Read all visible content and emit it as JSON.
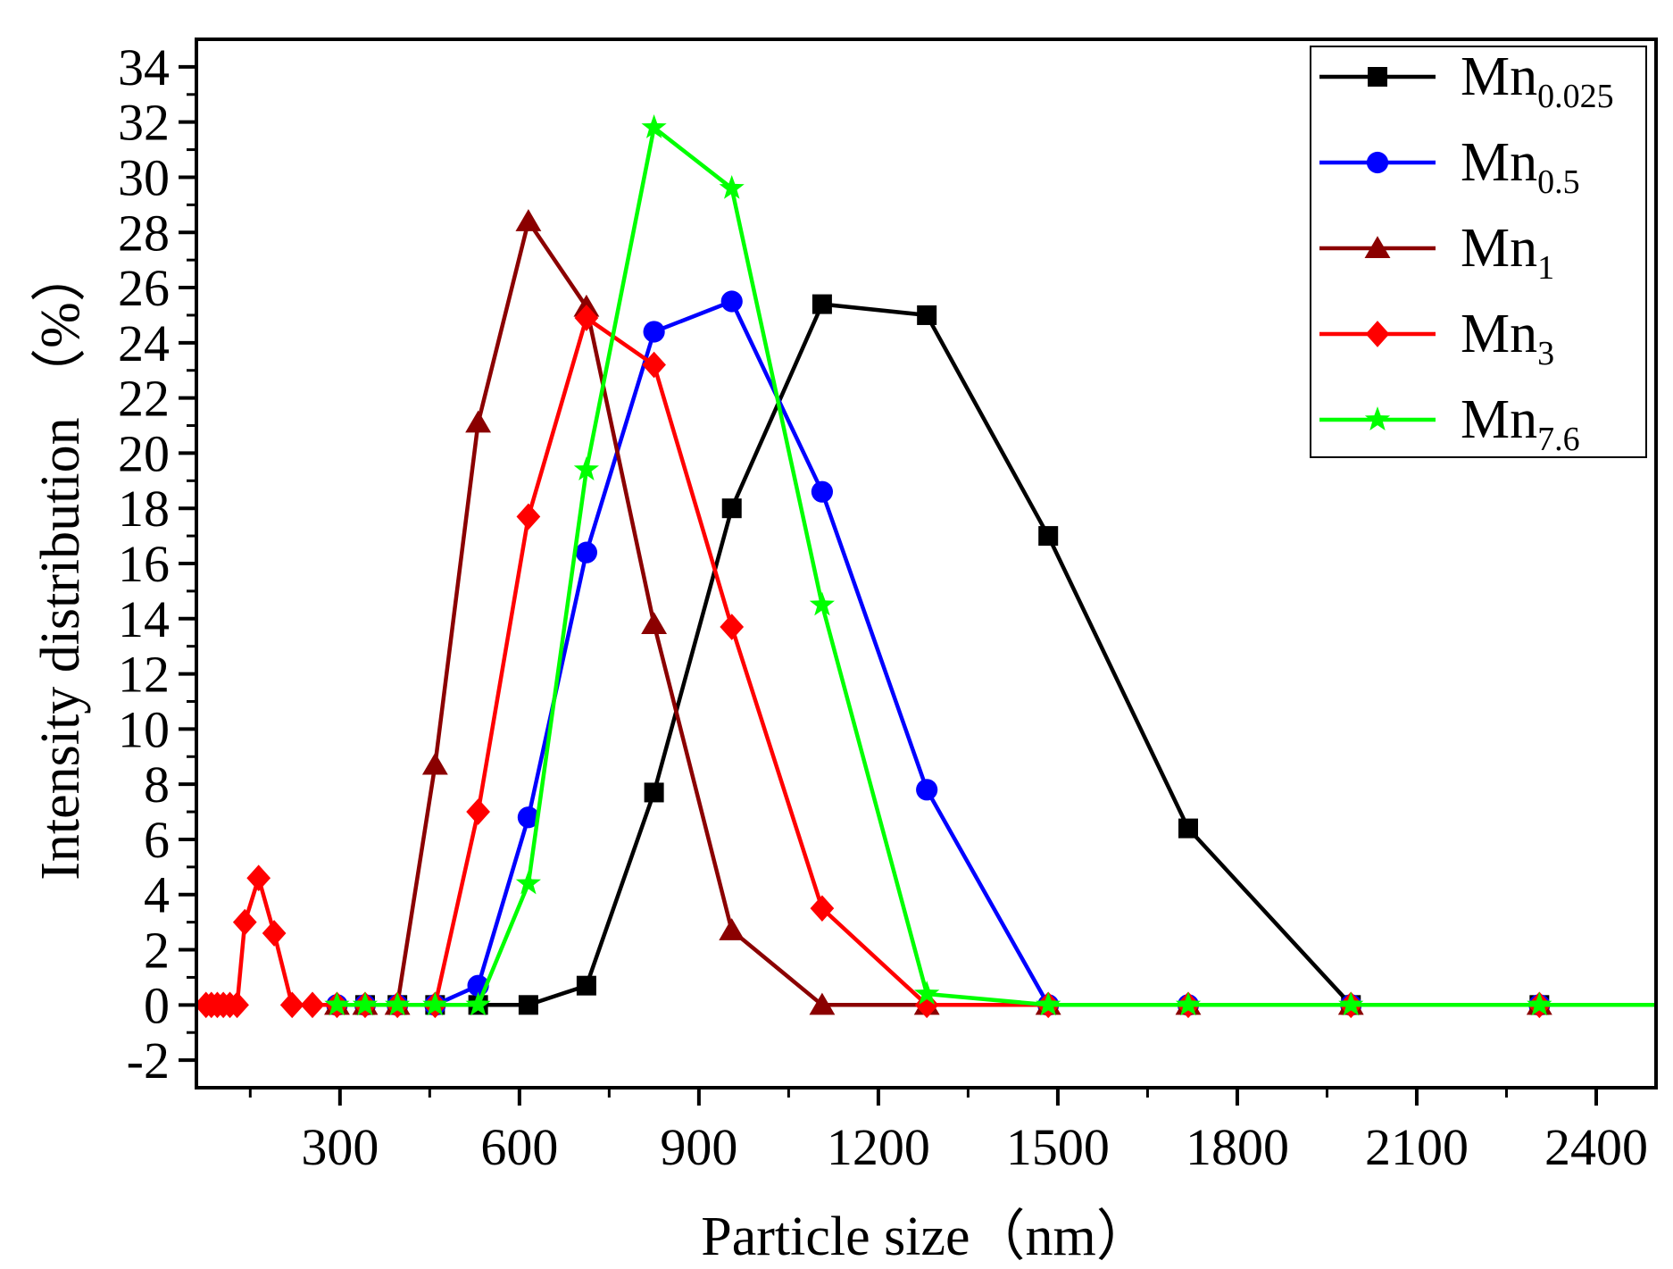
{
  "chart_data": {
    "type": "line",
    "title": "",
    "xlabel": "Particle size（nm）",
    "ylabel": "Intensity distribution （%）",
    "xlim": [
      60,
      2500
    ],
    "ylim": [
      -3,
      35
    ],
    "xticks": [
      300,
      600,
      900,
      1200,
      1500,
      1800,
      2100,
      2400
    ],
    "yticks": [
      -2,
      0,
      2,
      4,
      6,
      8,
      10,
      12,
      14,
      16,
      18,
      20,
      22,
      24,
      26,
      28,
      30,
      32,
      34
    ],
    "grid": false,
    "legend_position": "top-right",
    "series": [
      {
        "name": "Mn0.025",
        "label_main": "Mn",
        "label_sub": "0.025",
        "color": "#000000",
        "marker": "square",
        "x": [
          342,
          396,
          459,
          531,
          615,
          712,
          825,
          955,
          1106,
          1281,
          1484,
          1718,
          1990,
          2305
        ],
        "y": [
          0,
          0,
          0,
          0,
          0,
          0.7,
          7.7,
          18,
          25.4,
          25,
          17,
          6.4,
          0,
          0
        ]
      },
      {
        "name": "Mn0.5",
        "label_main": "Mn",
        "label_sub": "0.5",
        "color": "#0000ff",
        "marker": "circle",
        "x": [
          295,
          342,
          396,
          459,
          531,
          615,
          712,
          825,
          955,
          1106,
          1281,
          1484,
          1718,
          1990,
          2305
        ],
        "y": [
          0,
          0,
          0,
          0,
          0.7,
          6.8,
          16.4,
          24.4,
          25.5,
          18.6,
          7.8,
          0,
          0,
          0,
          0
        ]
      },
      {
        "name": "Mn1",
        "label_main": "Mn",
        "label_sub": "1",
        "color": "#8b0000",
        "marker": "triangle",
        "x": [
          295,
          342,
          396,
          459,
          531,
          615,
          712,
          825,
          955,
          1106,
          1281,
          1484,
          1718,
          1990,
          2305
        ],
        "y": [
          0,
          0,
          0,
          8.7,
          21.1,
          28.4,
          25.3,
          13.8,
          2.7,
          0,
          0,
          0,
          0,
          0,
          0
        ]
      },
      {
        "name": "Mn3",
        "label_main": "Mn",
        "label_sub": "3",
        "color": "#ff0000",
        "marker": "diamond",
        "x": [
          76,
          85,
          95,
          105,
          116,
          128,
          141,
          164,
          190,
          220,
          254,
          295,
          342,
          396,
          459,
          531,
          615,
          712,
          825,
          955,
          1106,
          1281,
          1484,
          1718,
          1990,
          2305
        ],
        "y": [
          0,
          0,
          0,
          0,
          0,
          0,
          3,
          4.6,
          2.6,
          0,
          0,
          0,
          0,
          0,
          0,
          7,
          17.7,
          24.9,
          23.2,
          13.7,
          3.5,
          0,
          0,
          0,
          0,
          0
        ]
      },
      {
        "name": "Mn7.6",
        "label_main": "Mn",
        "label_sub": "7.6",
        "color": "#00ff00",
        "marker": "star",
        "x": [
          295,
          342,
          396,
          459,
          531,
          615,
          712,
          825,
          955,
          1106,
          1281,
          1484,
          1718,
          1990,
          2305,
          2500
        ],
        "y": [
          0,
          0,
          0,
          0,
          0,
          4.4,
          19.4,
          31.8,
          29.6,
          14.5,
          0.4,
          0,
          0,
          0,
          0,
          0
        ]
      }
    ]
  }
}
